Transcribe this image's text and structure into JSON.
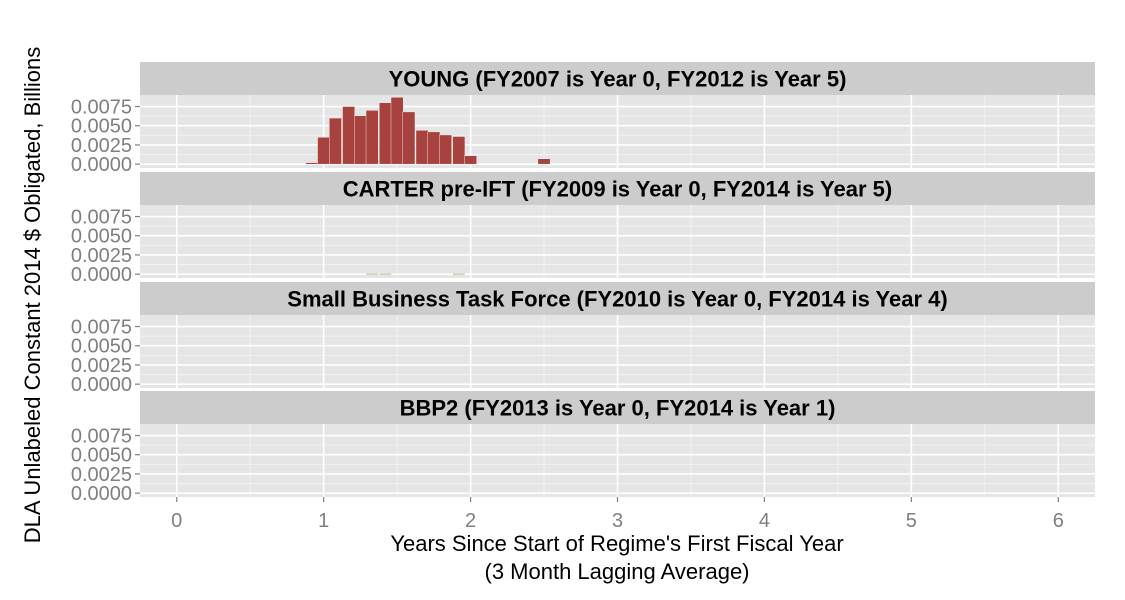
{
  "chart_data": {
    "type": "bar",
    "ylabel": "DLA Unlabeled Constant 2014 $ Obligated, Billions",
    "xlabel_lines": [
      "Years Since Start of Regime's First Fiscal Year",
      "(3 Month Lagging Average)"
    ],
    "xlim": [
      -0.25,
      6.25
    ],
    "ylim": [
      -0.0005,
      0.009
    ],
    "x_ticks": [
      0,
      1,
      2,
      3,
      4,
      5,
      6
    ],
    "x_tick_labels": [
      "0",
      "1",
      "2",
      "3",
      "4",
      "5",
      "6"
    ],
    "y_ticks": [
      0,
      0.0025,
      0.005,
      0.0075
    ],
    "y_tick_labels": [
      "0.0000",
      "0.0025",
      "0.0050",
      "0.0075"
    ],
    "bar_width": 0.0833,
    "grid": true,
    "panels": [
      {
        "title": "YOUNG (FY2007 is Year 0, FY2012 is Year 5)",
        "color": "#a8423f",
        "bars": [
          {
            "x": 0.92,
            "y": 0.0002
          },
          {
            "x": 1.0,
            "y": 0.0035
          },
          {
            "x": 1.08,
            "y": 0.006
          },
          {
            "x": 1.17,
            "y": 0.0075
          },
          {
            "x": 1.25,
            "y": 0.0063
          },
          {
            "x": 1.33,
            "y": 0.007
          },
          {
            "x": 1.42,
            "y": 0.008
          },
          {
            "x": 1.5,
            "y": 0.0087
          },
          {
            "x": 1.58,
            "y": 0.0068
          },
          {
            "x": 1.67,
            "y": 0.0044
          },
          {
            "x": 1.75,
            "y": 0.0042
          },
          {
            "x": 1.83,
            "y": 0.0038
          },
          {
            "x": 1.92,
            "y": 0.0036
          },
          {
            "x": 2.0,
            "y": 0.0011
          },
          {
            "x": 2.5,
            "y": 0.0007
          }
        ]
      },
      {
        "title": "CARTER pre-IFT (FY2009 is Year 0, FY2014 is Year 5)",
        "color": "#7a8a3a",
        "bars": [
          {
            "x": 1.33,
            "y": 8e-05
          },
          {
            "x": 1.42,
            "y": 8e-05
          },
          {
            "x": 1.92,
            "y": 8e-05
          }
        ]
      },
      {
        "title": "Small Business Task Force (FY2010 is Year 0, FY2014 is Year 4)",
        "color": "#4f81bd",
        "bars": []
      },
      {
        "title": "BBP2 (FY2013 is Year 0, FY2014 is Year 1)",
        "color": "#8064a2",
        "bars": []
      }
    ]
  }
}
